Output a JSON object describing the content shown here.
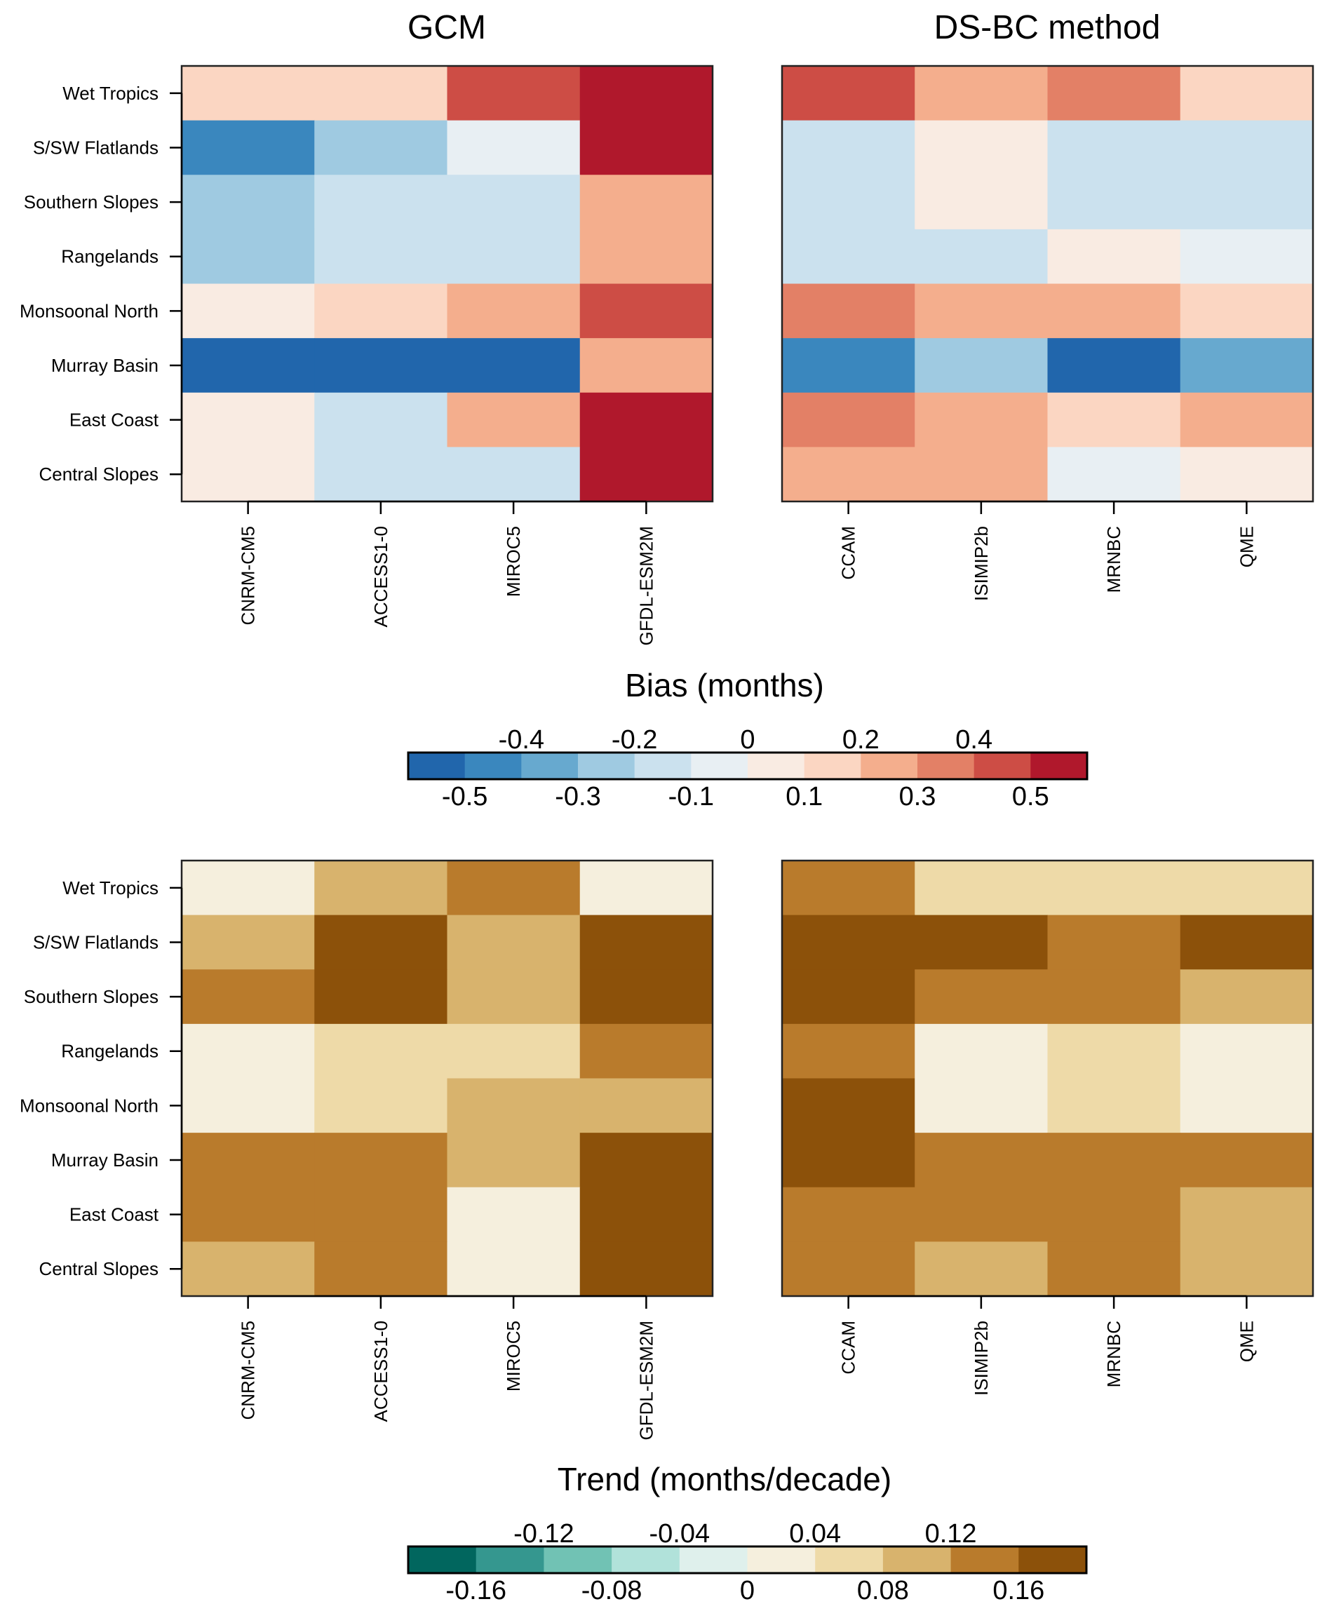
{
  "chart_data": [
    {
      "type": "heatmap",
      "panel": "top-left",
      "title": "GCM",
      "metric": "bias",
      "xlabels": [
        "CNRM-CM5",
        "ACCESS1-0",
        "MIROC5",
        "GFDL-ESM2M"
      ],
      "ylabels": [
        "Wet Tropics",
        "S/SW Flatlands",
        "Southern Slopes",
        "Rangelands",
        "Monsoonal North",
        "Murray Basin",
        "East Coast",
        "Central Slopes"
      ],
      "values": [
        [
          0.15,
          0.15,
          0.45,
          0.55
        ],
        [
          -0.45,
          -0.25,
          -0.05,
          0.55
        ],
        [
          -0.25,
          -0.15,
          -0.15,
          0.25
        ],
        [
          -0.25,
          -0.15,
          -0.15,
          0.25
        ],
        [
          0.05,
          0.15,
          0.25,
          0.45
        ],
        [
          -0.55,
          -0.55,
          -0.55,
          0.25
        ],
        [
          0.05,
          -0.15,
          0.25,
          0.55
        ],
        [
          0.05,
          -0.15,
          -0.15,
          0.55
        ]
      ]
    },
    {
      "type": "heatmap",
      "panel": "top-right",
      "title": "DS-BC method",
      "metric": "bias",
      "xlabels": [
        "CCAM",
        "ISIMIP2b",
        "MRNBC",
        "QME"
      ],
      "ylabels": [],
      "values": [
        [
          0.45,
          0.25,
          0.35,
          0.15
        ],
        [
          -0.15,
          0.05,
          -0.15,
          -0.15
        ],
        [
          -0.15,
          0.05,
          -0.15,
          -0.15
        ],
        [
          -0.15,
          -0.15,
          0.05,
          -0.05
        ],
        [
          0.35,
          0.25,
          0.25,
          0.15
        ],
        [
          -0.45,
          -0.25,
          -0.55,
          -0.35
        ],
        [
          0.35,
          0.25,
          0.15,
          0.25
        ],
        [
          0.25,
          0.25,
          -0.05,
          0.05
        ]
      ]
    },
    {
      "type": "heatmap",
      "panel": "bottom-left",
      "title": "",
      "metric": "trend",
      "xlabels": [
        "CNRM-CM5",
        "ACCESS1-0",
        "MIROC5",
        "GFDL-ESM2M"
      ],
      "ylabels": [
        "Wet Tropics",
        "S/SW Flatlands",
        "Southern Slopes",
        "Rangelands",
        "Monsoonal North",
        "Murray Basin",
        "East Coast",
        "Central Slopes"
      ],
      "values": [
        [
          0.02,
          0.1,
          0.14,
          0.02
        ],
        [
          0.1,
          0.18,
          0.1,
          0.18
        ],
        [
          0.14,
          0.18,
          0.1,
          0.18
        ],
        [
          0.02,
          0.06,
          0.06,
          0.14
        ],
        [
          0.02,
          0.06,
          0.1,
          0.1
        ],
        [
          0.14,
          0.14,
          0.1,
          0.18
        ],
        [
          0.14,
          0.14,
          0.02,
          0.18
        ],
        [
          0.1,
          0.14,
          0.02,
          0.18
        ]
      ]
    },
    {
      "type": "heatmap",
      "panel": "bottom-right",
      "title": "",
      "metric": "trend",
      "xlabels": [
        "CCAM",
        "ISIMIP2b",
        "MRNBC",
        "QME"
      ],
      "ylabels": [],
      "values": [
        [
          0.14,
          0.06,
          0.06,
          0.06
        ],
        [
          0.18,
          0.18,
          0.14,
          0.18
        ],
        [
          0.18,
          0.14,
          0.14,
          0.1
        ],
        [
          0.14,
          0.02,
          0.06,
          0.02
        ],
        [
          0.18,
          0.02,
          0.06,
          0.02
        ],
        [
          0.18,
          0.14,
          0.14,
          0.14
        ],
        [
          0.14,
          0.14,
          0.14,
          0.1
        ],
        [
          0.14,
          0.1,
          0.14,
          0.1
        ]
      ]
    }
  ],
  "colorbars": {
    "bias": {
      "title": "Bias (months)",
      "range": [
        -0.6,
        0.6
      ],
      "step": 0.1,
      "colors": [
        "#2166ac",
        "#3a87be",
        "#67a9cf",
        "#9fcae1",
        "#cbe1ee",
        "#e8eff3",
        "#f9ebe2",
        "#fbd6c2",
        "#f4ae8d",
        "#e38066",
        "#cd4d45",
        "#b0182c"
      ],
      "top_ticks": [
        "-0.4",
        "-0.2",
        "0",
        "0.2",
        "0.4"
      ],
      "top_tick_values": [
        -0.4,
        -0.2,
        0,
        0.2,
        0.4
      ],
      "bottom_ticks": [
        "-0.5",
        "-0.3",
        "-0.1",
        "0.1",
        "0.3",
        "0.5"
      ],
      "bottom_tick_values": [
        -0.5,
        -0.3,
        -0.1,
        0.1,
        0.3,
        0.5
      ]
    },
    "trend": {
      "title": "Trend (months/decade)",
      "range": [
        -0.2,
        0.2
      ],
      "step": 0.04,
      "colors": [
        "#01665e",
        "#35978f",
        "#71c2b4",
        "#b1e2da",
        "#dff0ec",
        "#f5efdd",
        "#eedaa8",
        "#d8b36d",
        "#b97b2c",
        "#8c510a"
      ],
      "top_ticks": [
        "-0.12",
        "-0.04",
        "0.04",
        "0.12"
      ],
      "top_tick_values": [
        -0.12,
        -0.04,
        0.04,
        0.12
      ],
      "bottom_ticks": [
        "-0.16",
        "-0.08",
        "0",
        "0.08",
        "0.16"
      ],
      "bottom_tick_values": [
        -0.16,
        -0.08,
        0,
        0.08,
        0.16
      ]
    }
  }
}
